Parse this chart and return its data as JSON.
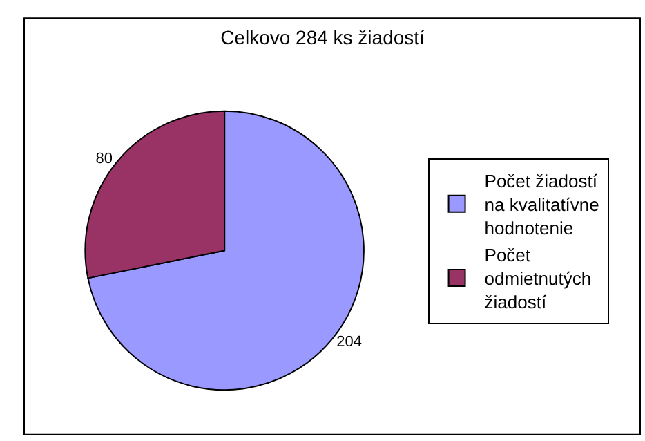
{
  "chart_data": {
    "type": "pie",
    "title": "Celkovo 284 ks žiadostí",
    "categories": [
      "Počet žiadostí na kvalitatívne hodnotenie",
      "Počet odmietnutých žiadostí"
    ],
    "values": [
      204,
      80
    ],
    "colors": [
      "#9999ff",
      "#993366"
    ],
    "data_labels": true,
    "legend": "right"
  }
}
